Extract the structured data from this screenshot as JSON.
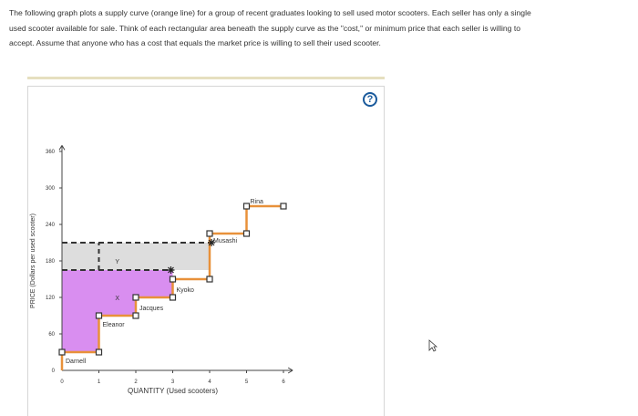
{
  "intro": {
    "line1": "The following graph plots a supply curve (orange line) for a group of recent graduates looking to sell used motor scooters. Each seller has only a single",
    "line2": "used scooter available for sale. Think of each rectangular area beneath the supply curve as the \"cost,\" or minimum price that each seller is willing to",
    "line3": "accept. Assume that anyone who has a cost that equals the market price is willing to sell their used scooter."
  },
  "help_label": "?",
  "colors": {
    "supply_orange": "#e8913a",
    "purple_area": "#d98ef0",
    "gray_area": "#dddddd",
    "dashed_line": "#333333",
    "help_blue": "#1a5a9c"
  },
  "icons": {
    "help": "question-circle-icon",
    "cursor": "mouse-pointer-icon",
    "price_marker": "plus-cross-icon"
  },
  "chart_data": {
    "type": "step",
    "xlabel": "QUANTITY (Used scooters)",
    "ylabel": "PRICE (Dollars per used scooter)",
    "xlim": [
      0,
      6
    ],
    "ylim": [
      0,
      360
    ],
    "x_ticks": [
      "0",
      "1",
      "2",
      "3",
      "4",
      "5",
      "6"
    ],
    "y_ticks": [
      "0",
      "60",
      "120",
      "180",
      "240",
      "300",
      "360"
    ],
    "sellers": [
      {
        "name": "Darnell",
        "cost": 30,
        "from": 0,
        "to": 1
      },
      {
        "name": "Eleanor",
        "cost": 90,
        "from": 1,
        "to": 2
      },
      {
        "name": "Jacques",
        "cost": 120,
        "from": 2,
        "to": 3
      },
      {
        "name": "Kyoko",
        "cost": 150,
        "from": 3,
        "to": 4
      },
      {
        "name": "Musashi",
        "cost": 225,
        "from": 4,
        "to": 5
      },
      {
        "name": "Rina",
        "cost": 270,
        "from": 5,
        "to": 6
      }
    ],
    "price_lines": [
      {
        "label": "Y",
        "price": 165
      },
      {
        "label": "",
        "price": 210
      }
    ],
    "point_labels": [
      {
        "label": "X",
        "x": 1.5,
        "y": 120
      }
    ],
    "shaded_regions": [
      {
        "name": "purple",
        "from_price": "supply",
        "to_price": 165,
        "x_to": 3
      },
      {
        "name": "gray",
        "from_price": 165,
        "to_price": 210,
        "x_to": 4
      }
    ]
  }
}
